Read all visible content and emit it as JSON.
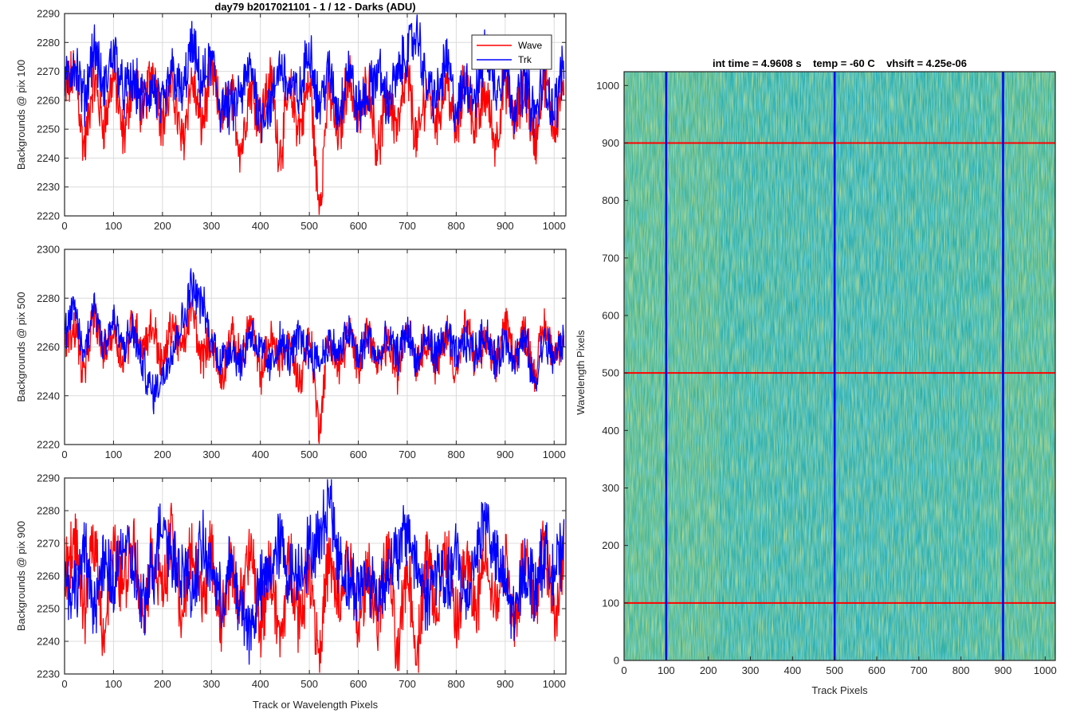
{
  "figure": {
    "colors": {
      "wave": "#ff0000",
      "trk": "#0000ff",
      "grid": "#dcdcdc",
      "axis": "#262626",
      "image_base": "#2fb0a0",
      "image_cyan": "#1ea5d2",
      "image_yellow": "#b8c84a"
    }
  },
  "chart_data": [
    {
      "type": "line",
      "title": "day79 b2017021101 - 1 / 12 - Darks (ADU)",
      "xlabel": "",
      "ylabel": "Backgrounds @ pix 100",
      "xlim": [
        0,
        1024
      ],
      "ylim": [
        2220,
        2290
      ],
      "xticks": [
        0,
        100,
        200,
        300,
        400,
        500,
        600,
        700,
        800,
        900,
        1000
      ],
      "xtick_labels": [
        "0",
        "100",
        "200",
        "300",
        "400",
        "500",
        "600",
        "700",
        "800",
        "900",
        "1000"
      ],
      "yticks": [
        2220,
        2230,
        2240,
        2250,
        2260,
        2270,
        2280,
        2290
      ],
      "ytick_labels": [
        "2220",
        "2230",
        "2240",
        "2250",
        "2260",
        "2270",
        "2280",
        "2290"
      ],
      "grid": true,
      "legend": "top-right",
      "series": [
        {
          "name": "Wave",
          "color": "#ff0000",
          "x": [
            0,
            20,
            40,
            60,
            80,
            100,
            120,
            140,
            160,
            180,
            200,
            220,
            240,
            260,
            280,
            300,
            320,
            340,
            360,
            380,
            400,
            420,
            440,
            460,
            480,
            500,
            520,
            540,
            560,
            580,
            600,
            620,
            640,
            660,
            680,
            700,
            720,
            740,
            760,
            780,
            800,
            820,
            840,
            860,
            880,
            900,
            920,
            940,
            960,
            980,
            1000,
            1020
          ],
          "y": [
            2262,
            2270,
            2245,
            2266,
            2252,
            2268,
            2248,
            2266,
            2257,
            2271,
            2253,
            2264,
            2246,
            2266,
            2252,
            2269,
            2255,
            2261,
            2244,
            2264,
            2255,
            2266,
            2243,
            2262,
            2251,
            2265,
            2226,
            2262,
            2248,
            2268,
            2253,
            2266,
            2244,
            2261,
            2251,
            2267,
            2246,
            2263,
            2254,
            2266,
            2249,
            2267,
            2251,
            2262,
            2246,
            2266,
            2253,
            2263,
            2246,
            2268,
            2252,
            2266
          ]
        },
        {
          "name": "Trk",
          "color": "#0000ff",
          "x": [
            0,
            20,
            40,
            60,
            80,
            100,
            120,
            140,
            160,
            180,
            200,
            220,
            240,
            260,
            280,
            300,
            320,
            340,
            360,
            380,
            400,
            420,
            440,
            460,
            480,
            500,
            520,
            540,
            560,
            580,
            600,
            620,
            640,
            660,
            680,
            700,
            720,
            740,
            760,
            780,
            800,
            820,
            840,
            860,
            880,
            900,
            920,
            940,
            960,
            980,
            1000,
            1020
          ],
          "y": [
            2265,
            2273,
            2261,
            2278,
            2264,
            2277,
            2263,
            2266,
            2260,
            2264,
            2257,
            2270,
            2262,
            2278,
            2266,
            2273,
            2258,
            2257,
            2262,
            2271,
            2255,
            2258,
            2272,
            2264,
            2262,
            2278,
            2259,
            2269,
            2256,
            2271,
            2257,
            2262,
            2270,
            2260,
            2268,
            2277,
            2283,
            2265,
            2261,
            2273,
            2257,
            2266,
            2262,
            2277,
            2265,
            2270,
            2258,
            2266,
            2255,
            2266,
            2257,
            2272
          ]
        }
      ]
    },
    {
      "type": "line",
      "title": "",
      "xlabel": "",
      "ylabel": "Backgrounds @ pix 500",
      "xlim": [
        0,
        1024
      ],
      "ylim": [
        2220,
        2300
      ],
      "xticks": [
        0,
        100,
        200,
        300,
        400,
        500,
        600,
        700,
        800,
        900,
        1000
      ],
      "xtick_labels": [
        "0",
        "100",
        "200",
        "300",
        "400",
        "500",
        "600",
        "700",
        "800",
        "900",
        "1000"
      ],
      "yticks": [
        2220,
        2240,
        2260,
        2280,
        2300
      ],
      "ytick_labels": [
        "2220",
        "2240",
        "2260",
        "2280",
        "2300"
      ],
      "grid": true,
      "series": [
        {
          "name": "Wave",
          "color": "#ff0000",
          "x": [
            0,
            20,
            40,
            60,
            80,
            100,
            120,
            140,
            160,
            180,
            200,
            220,
            240,
            260,
            280,
            300,
            320,
            340,
            360,
            380,
            400,
            420,
            440,
            460,
            480,
            500,
            520,
            540,
            560,
            580,
            600,
            620,
            640,
            660,
            680,
            700,
            720,
            740,
            760,
            780,
            800,
            820,
            840,
            860,
            880,
            900,
            920,
            940,
            960,
            980,
            1000,
            1020
          ],
          "y": [
            2262,
            2268,
            2250,
            2272,
            2258,
            2266,
            2255,
            2270,
            2261,
            2268,
            2253,
            2269,
            2259,
            2275,
            2256,
            2262,
            2247,
            2264,
            2255,
            2270,
            2249,
            2263,
            2256,
            2261,
            2246,
            2264,
            2229,
            2262,
            2251,
            2265,
            2254,
            2267,
            2252,
            2262,
            2249,
            2270,
            2254,
            2264,
            2252,
            2266,
            2251,
            2268,
            2255,
            2262,
            2252,
            2269,
            2257,
            2266,
            2250,
            2268,
            2258,
            2264
          ]
        },
        {
          "name": "Trk",
          "color": "#0000ff",
          "x": [
            0,
            20,
            40,
            60,
            80,
            100,
            120,
            140,
            160,
            180,
            200,
            220,
            240,
            260,
            280,
            300,
            320,
            340,
            360,
            380,
            400,
            420,
            440,
            460,
            480,
            500,
            520,
            540,
            560,
            580,
            600,
            620,
            640,
            660,
            680,
            700,
            720,
            740,
            760,
            780,
            800,
            820,
            840,
            860,
            880,
            900,
            920,
            940,
            960,
            980,
            1000,
            1020
          ],
          "y": [
            2266,
            2274,
            2258,
            2277,
            2262,
            2270,
            2260,
            2266,
            2252,
            2241,
            2248,
            2260,
            2270,
            2285,
            2278,
            2262,
            2255,
            2260,
            2254,
            2266,
            2258,
            2252,
            2262,
            2256,
            2264,
            2258,
            2254,
            2262,
            2257,
            2266,
            2256,
            2264,
            2255,
            2262,
            2257,
            2266,
            2254,
            2263,
            2257,
            2265,
            2256,
            2262,
            2258,
            2266,
            2254,
            2262,
            2256,
            2262,
            2245,
            2262,
            2256,
            2262
          ]
        }
      ]
    },
    {
      "type": "line",
      "title": "",
      "xlabel": "Track or Wavelength Pixels",
      "ylabel": "Backgrounds @ pix 900",
      "xlim": [
        0,
        1024
      ],
      "ylim": [
        2230,
        2290
      ],
      "xticks": [
        0,
        100,
        200,
        300,
        400,
        500,
        600,
        700,
        800,
        900,
        1000
      ],
      "xtick_labels": [
        "0",
        "100",
        "200",
        "300",
        "400",
        "500",
        "600",
        "700",
        "800",
        "900",
        "1000"
      ],
      "yticks": [
        2230,
        2240,
        2250,
        2260,
        2270,
        2280,
        2290
      ],
      "ytick_labels": [
        "2230",
        "2240",
        "2250",
        "2260",
        "2270",
        "2280",
        "2290"
      ],
      "grid": true,
      "series": [
        {
          "name": "Wave",
          "color": "#ff0000",
          "x": [
            0,
            20,
            40,
            60,
            80,
            100,
            120,
            140,
            160,
            180,
            200,
            220,
            240,
            260,
            280,
            300,
            320,
            340,
            360,
            380,
            400,
            420,
            440,
            460,
            480,
            500,
            520,
            540,
            560,
            580,
            600,
            620,
            640,
            660,
            680,
            700,
            720,
            740,
            760,
            780,
            800,
            820,
            840,
            860,
            880,
            900,
            920,
            940,
            960,
            980,
            1000,
            1020
          ],
          "y": [
            2262,
            2270,
            2250,
            2272,
            2244,
            2266,
            2258,
            2271,
            2249,
            2266,
            2256,
            2272,
            2248,
            2268,
            2254,
            2266,
            2247,
            2262,
            2252,
            2267,
            2245,
            2262,
            2240,
            2264,
            2248,
            2262,
            2238,
            2264,
            2250,
            2266,
            2245,
            2261,
            2247,
            2266,
            2236,
            2262,
            2238,
            2266,
            2250,
            2268,
            2245,
            2264,
            2249,
            2268,
            2251,
            2265,
            2247,
            2266,
            2252,
            2270,
            2248,
            2268
          ]
        },
        {
          "name": "Trk",
          "color": "#0000ff",
          "x": [
            0,
            20,
            40,
            60,
            80,
            100,
            120,
            140,
            160,
            180,
            200,
            220,
            240,
            260,
            280,
            300,
            320,
            340,
            360,
            380,
            400,
            420,
            440,
            460,
            480,
            500,
            520,
            540,
            560,
            580,
            600,
            620,
            640,
            660,
            680,
            700,
            720,
            740,
            760,
            780,
            800,
            820,
            840,
            860,
            880,
            900,
            920,
            940,
            960,
            980,
            1000,
            1020
          ],
          "y": [
            2260,
            2255,
            2266,
            2252,
            2262,
            2258,
            2270,
            2262,
            2250,
            2262,
            2278,
            2266,
            2262,
            2256,
            2268,
            2262,
            2252,
            2262,
            2250,
            2244,
            2256,
            2262,
            2270,
            2260,
            2262,
            2268,
            2270,
            2284,
            2266,
            2258,
            2256,
            2260,
            2254,
            2262,
            2266,
            2274,
            2263,
            2254,
            2262,
            2256,
            2266,
            2252,
            2268,
            2278,
            2266,
            2256,
            2248,
            2262,
            2258,
            2266,
            2262,
            2266
          ]
        }
      ]
    },
    {
      "type": "heatmap",
      "title": "int time = 4.9608 s    temp = -60 C    vhsift = 4.25e-06",
      "xlabel": "Track Pixels",
      "ylabel": "Wavelength Pixels",
      "xlim": [
        0,
        1024
      ],
      "ylim": [
        0,
        1024
      ],
      "xticks": [
        0,
        100,
        200,
        300,
        400,
        500,
        600,
        700,
        800,
        900,
        1000
      ],
      "xtick_labels": [
        "0",
        "100",
        "200",
        "300",
        "400",
        "500",
        "600",
        "700",
        "800",
        "900",
        "1000"
      ],
      "yticks": [
        0,
        100,
        200,
        300,
        400,
        500,
        600,
        700,
        800,
        900,
        1000
      ],
      "ytick_labels": [
        "0",
        "100",
        "200",
        "300",
        "400",
        "500",
        "600",
        "700",
        "800",
        "900",
        "1000"
      ],
      "vertical_lines": [
        100,
        500,
        900
      ],
      "vertical_line_color": "#0000ff",
      "horizontal_lines": [
        100,
        500,
        900
      ],
      "horizontal_line_color": "#ff0000"
    }
  ]
}
